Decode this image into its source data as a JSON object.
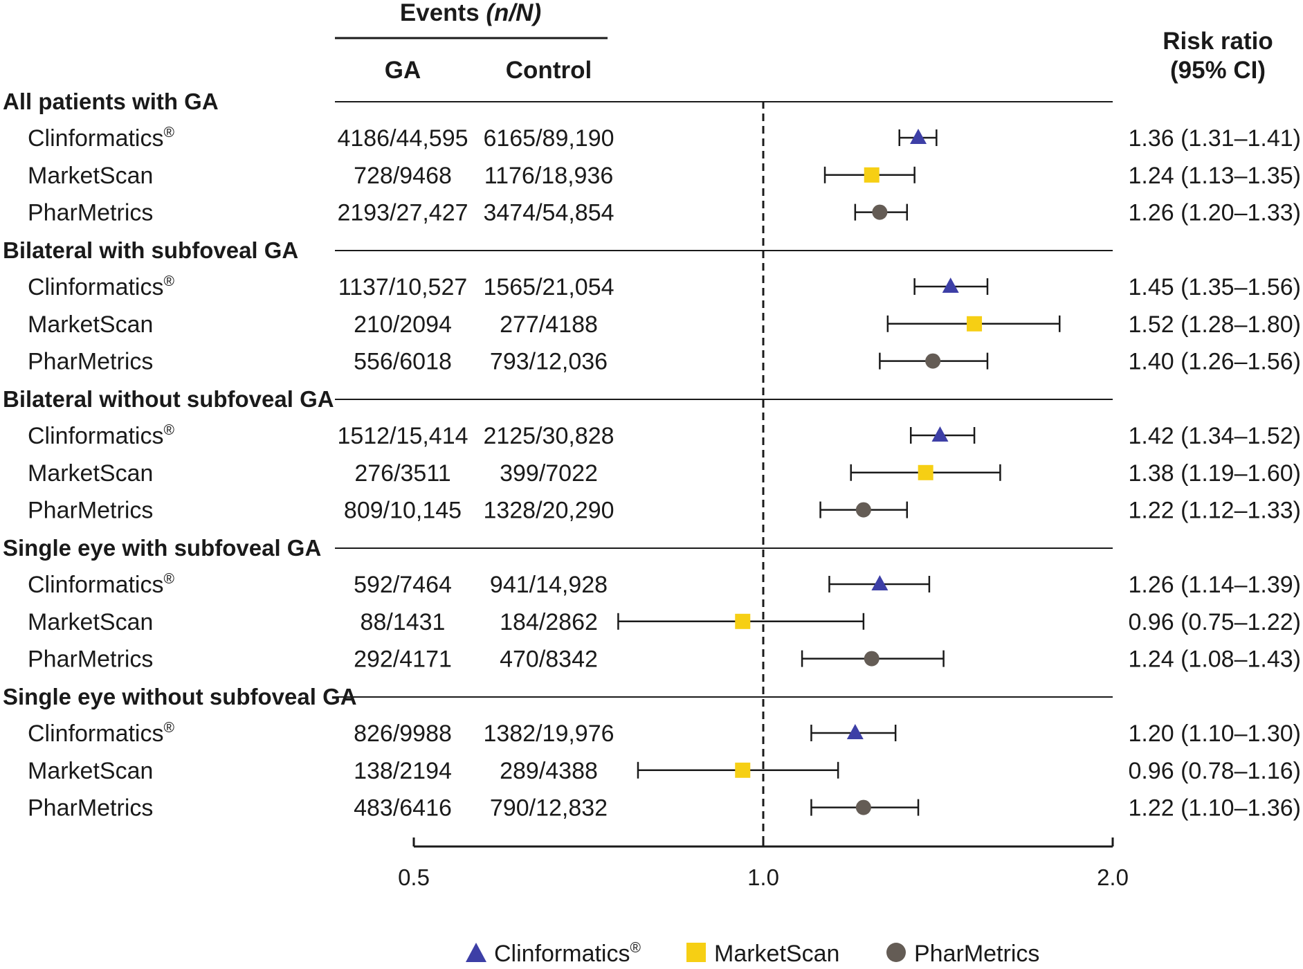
{
  "chart_data": {
    "type": "forest",
    "x_scale": "log",
    "xlim": [
      0.5,
      2.0
    ],
    "reference_line": 1.0,
    "x_ticks": [
      {
        "value": 0.5,
        "label": "0.5"
      },
      {
        "value": 1.0,
        "label": "1.0"
      },
      {
        "value": 2.0,
        "label": "2.0"
      }
    ],
    "headers": {
      "events": "Events",
      "events_italic": "(n/N)",
      "ga": "GA",
      "control": "Control",
      "rr_line1": "Risk ratio",
      "rr_line2": "(95% CI)"
    },
    "series": [
      {
        "name": "Clinformatics",
        "sup": "®",
        "marker": "triangle",
        "color": "#3d3fa6"
      },
      {
        "name": "MarketScan",
        "sup": "",
        "marker": "square",
        "color": "#f6cf14"
      },
      {
        "name": "PharMetrics",
        "sup": "",
        "marker": "circle",
        "color": "#645c55"
      }
    ],
    "groups": [
      {
        "title": "All patients with GA",
        "rows": [
          {
            "name": "Clinformatics",
            "sup": "®",
            "series": 0,
            "ga": "4186/44,595",
            "control": "6165/89,190",
            "rr": 1.36,
            "lo": 1.31,
            "hi": 1.41,
            "ci_text": "1.36 (1.31–1.41)"
          },
          {
            "name": "MarketScan",
            "sup": "",
            "series": 1,
            "ga": "728/9468",
            "control": "1176/18,936",
            "rr": 1.24,
            "lo": 1.13,
            "hi": 1.35,
            "ci_text": "1.24 (1.13–1.35)"
          },
          {
            "name": "PharMetrics",
            "sup": "",
            "series": 2,
            "ga": "2193/27,427",
            "control": "3474/54,854",
            "rr": 1.26,
            "lo": 1.2,
            "hi": 1.33,
            "ci_text": "1.26 (1.20–1.33)"
          }
        ]
      },
      {
        "title": "Bilateral with subfoveal GA",
        "rows": [
          {
            "name": "Clinformatics",
            "sup": "®",
            "series": 0,
            "ga": "1137/10,527",
            "control": "1565/21,054",
            "rr": 1.45,
            "lo": 1.35,
            "hi": 1.56,
            "ci_text": "1.45 (1.35–1.56)"
          },
          {
            "name": "MarketScan",
            "sup": "",
            "series": 1,
            "ga": "210/2094",
            "control": "277/4188",
            "rr": 1.52,
            "lo": 1.28,
            "hi": 1.8,
            "ci_text": "1.52 (1.28–1.80)"
          },
          {
            "name": "PharMetrics",
            "sup": "",
            "series": 2,
            "ga": "556/6018",
            "control": "793/12,036",
            "rr": 1.4,
            "lo": 1.26,
            "hi": 1.56,
            "ci_text": "1.40 (1.26–1.56)"
          }
        ]
      },
      {
        "title": "Bilateral without subfoveal GA",
        "rows": [
          {
            "name": "Clinformatics",
            "sup": "®",
            "series": 0,
            "ga": "1512/15,414",
            "control": "2125/30,828",
            "rr": 1.42,
            "lo": 1.34,
            "hi": 1.52,
            "ci_text": "1.42 (1.34–1.52)"
          },
          {
            "name": "MarketScan",
            "sup": "",
            "series": 1,
            "ga": "276/3511",
            "control": "399/7022",
            "rr": 1.38,
            "lo": 1.19,
            "hi": 1.6,
            "ci_text": "1.38 (1.19–1.60)"
          },
          {
            "name": "PharMetrics",
            "sup": "",
            "series": 2,
            "ga": "809/10,145",
            "control": "1328/20,290",
            "rr": 1.22,
            "lo": 1.12,
            "hi": 1.33,
            "ci_text": "1.22 (1.12–1.33)"
          }
        ]
      },
      {
        "title": "Single eye with subfoveal GA",
        "rows": [
          {
            "name": "Clinformatics",
            "sup": "®",
            "series": 0,
            "ga": "592/7464",
            "control": "941/14,928",
            "rr": 1.26,
            "lo": 1.14,
            "hi": 1.39,
            "ci_text": "1.26 (1.14–1.39)"
          },
          {
            "name": "MarketScan",
            "sup": "",
            "series": 1,
            "ga": "88/1431",
            "control": "184/2862",
            "rr": 0.96,
            "lo": 0.75,
            "hi": 1.22,
            "ci_text": "0.96 (0.75–1.22)"
          },
          {
            "name": "PharMetrics",
            "sup": "",
            "series": 2,
            "ga": "292/4171",
            "control": "470/8342",
            "rr": 1.24,
            "lo": 1.08,
            "hi": 1.43,
            "ci_text": "1.24 (1.08–1.43)"
          }
        ]
      },
      {
        "title": "Single eye without subfoveal GA",
        "rows": [
          {
            "name": "Clinformatics",
            "sup": "®",
            "series": 0,
            "ga": "826/9988",
            "control": "1382/19,976",
            "rr": 1.2,
            "lo": 1.1,
            "hi": 1.3,
            "ci_text": "1.20 (1.10–1.30)"
          },
          {
            "name": "MarketScan",
            "sup": "",
            "series": 1,
            "ga": "138/2194",
            "control": "289/4388",
            "rr": 0.96,
            "lo": 0.78,
            "hi": 1.16,
            "ci_text": "0.96 (0.78–1.16)"
          },
          {
            "name": "PharMetrics",
            "sup": "",
            "series": 2,
            "ga": "483/6416",
            "control": "790/12,832",
            "rr": 1.22,
            "lo": 1.1,
            "hi": 1.36,
            "ci_text": "1.22 (1.10–1.36)"
          }
        ]
      }
    ]
  }
}
